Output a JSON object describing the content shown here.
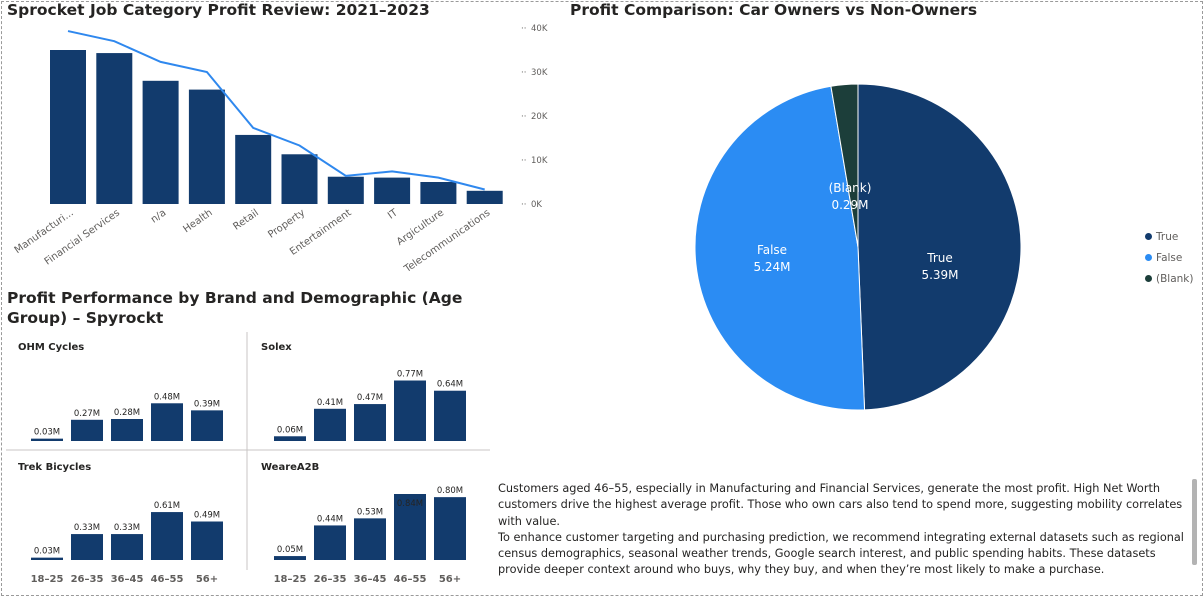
{
  "titles": {
    "job_category": "Sprocket Job Category Profit Review: 2021–2023",
    "brand_demo": "Profit Performance by Brand and Demographic (Age Group) – Spyrockt",
    "car_owners": "Profit Comparison: Car Owners vs Non-Owners"
  },
  "colors": {
    "navy": "#123b6d",
    "blue": "#2b8cf3",
    "dark_green": "#1c3e3a",
    "line": "#2f88ee"
  },
  "chart_data": [
    {
      "type": "bar",
      "categories": [
        "Manufacturi...",
        "Financial Services",
        "n/a",
        "Health",
        "Retail",
        "Property",
        "Entertainment",
        "IT",
        "Argiculture",
        "Telecommunications"
      ],
      "series": [
        {
          "kind": "bar",
          "values": [
            35000,
            34300,
            28000,
            26000,
            15700,
            11300,
            6200,
            6000,
            5000,
            3000
          ]
        },
        {
          "kind": "line",
          "values": [
            39300,
            37000,
            32300,
            30000,
            17300,
            13300,
            6400,
            7400,
            6000,
            3300
          ]
        }
      ],
      "y_ticks": [
        "40K",
        "30K",
        "20K",
        "10K",
        "0K"
      ],
      "ylim": [
        0,
        40000
      ]
    },
    {
      "type": "bar",
      "categories": [
        "18–25",
        "26–35",
        "36–45",
        "46–55",
        "56+"
      ],
      "panels": [
        {
          "name": "OHM Cycles",
          "values": [
            0.03,
            0.27,
            0.28,
            0.48,
            0.39
          ],
          "labels": [
            "0.03M",
            "0.27M",
            "0.28M",
            "0.48M",
            "0.39M"
          ]
        },
        {
          "name": "Solex",
          "values": [
            0.06,
            0.41,
            0.47,
            0.77,
            0.64
          ],
          "labels": [
            "0.06M",
            "0.41M",
            "0.47M",
            "0.77M",
            "0.64M"
          ]
        },
        {
          "name": "Trek Bicycles",
          "values": [
            0.03,
            0.33,
            0.33,
            0.61,
            0.49
          ],
          "labels": [
            "0.03M",
            "0.33M",
            "0.33M",
            "0.61M",
            "0.49M"
          ]
        },
        {
          "name": "WeareA2B",
          "values": [
            0.05,
            0.44,
            0.53,
            0.84,
            0.8
          ],
          "labels": [
            "0.05M",
            "0.44M",
            "0.53M",
            "0.84M",
            "0.80M"
          ]
        }
      ],
      "ylim": [
        0,
        0.84
      ]
    },
    {
      "type": "pie",
      "slices": [
        {
          "name": "True",
          "value": 5.39,
          "label": "5.39M",
          "color": "#123b6d"
        },
        {
          "name": "False",
          "value": 5.24,
          "label": "5.24M",
          "color": "#2b8cf3"
        },
        {
          "name": "(Blank)",
          "value": 0.29,
          "label": "0.29M",
          "color": "#1c3e3a"
        }
      ],
      "legend": "right"
    }
  ],
  "legend_items": [
    {
      "name": "True",
      "color": "#123b6d"
    },
    {
      "name": "False",
      "color": "#2b8cf3"
    },
    {
      "name": "(Blank)",
      "color": "#1c3e3a"
    }
  ],
  "note": {
    "p1": "Customers aged 46–55, especially in Manufacturing and Financial Services, generate the most profit. High Net Worth customers drive the highest average profit. Those who own cars also tend to spend more, suggesting mobility correlates with value.",
    "p2": "To enhance customer targeting and purchasing prediction, we recommend integrating external datasets such as regional census demographics, seasonal weather trends, Google search interest, and public spending habits. These datasets provide deeper context around who buys, why they buy, and when they’re most likely to make a purchase."
  }
}
